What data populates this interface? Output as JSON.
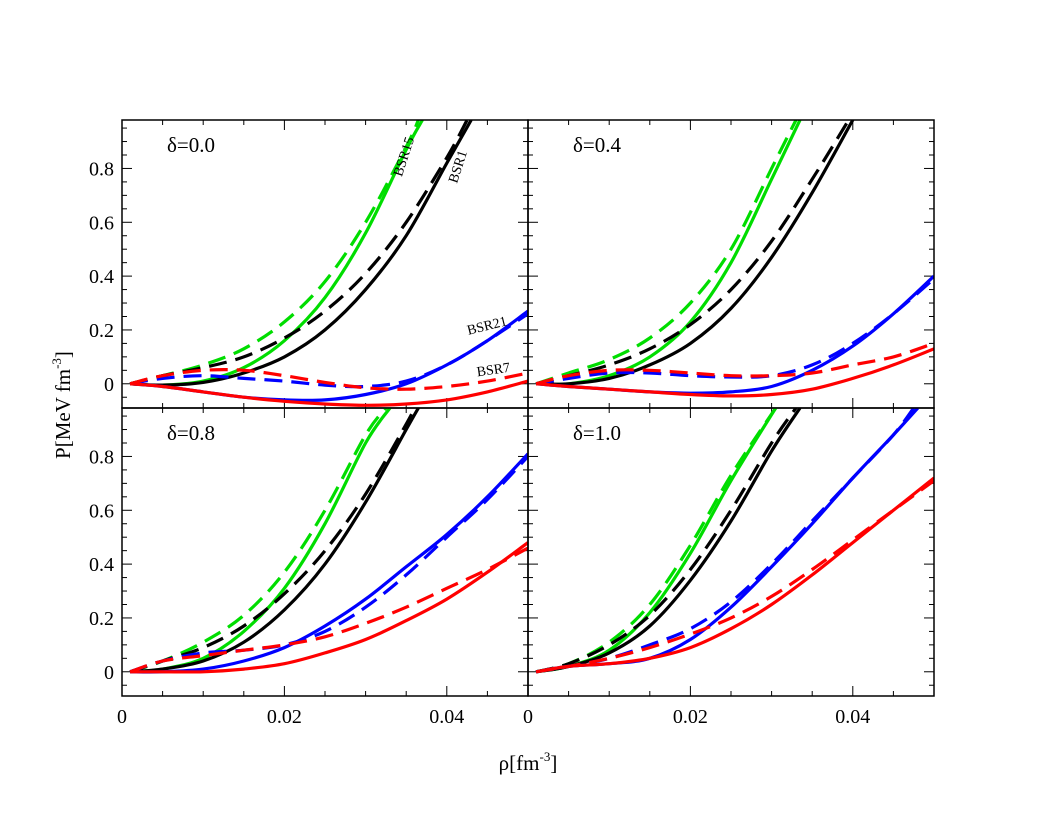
{
  "figure": {
    "ylabel": {
      "main": "P[MeV fm",
      "sup": "-3",
      "close": "]"
    },
    "xlabel": {
      "main": "ρ[fm",
      "sup": "-3",
      "close": "]"
    }
  },
  "chart_data": {
    "type": "line",
    "layout": "2x2 panels sharing x and y axes",
    "xlim": [
      0,
      0.05
    ],
    "ylim": [
      -0.09,
      0.98
    ],
    "x_ticks": [
      0,
      0.02,
      0.04
    ],
    "x_tick_labels": [
      "0",
      "0.02",
      "0.04"
    ],
    "y_ticks": [
      0,
      0.2,
      0.4,
      0.6,
      0.8
    ],
    "y_tick_labels": [
      "0",
      "0.2",
      "0.4",
      "0.6",
      "0.8"
    ],
    "xlabel": "ρ[fm^-3]",
    "ylabel": "P[MeV fm^-3]",
    "line_styles": {
      "solid": "solid",
      "dashed": "dashed"
    },
    "models": [
      {
        "name": "BSR1",
        "color": "#000000"
      },
      {
        "name": "BSR7",
        "color": "#ff0000"
      },
      {
        "name": "BSR15",
        "color": "#00dd00"
      },
      {
        "name": "BSR21",
        "color": "#0000ff"
      }
    ],
    "panels": [
      {
        "label": "δ=0.0",
        "curve_labels": [
          "BSR15",
          "BSR1",
          "BSR21",
          "BSR7"
        ],
        "series": [
          {
            "model": "BSR15",
            "style": "solid",
            "x": [
              0.001,
              0.005,
              0.01,
              0.015,
              0.02,
              0.025,
              0.03,
              0.035,
              0.037
            ],
            "y": [
              0,
              -0.005,
              0.01,
              0.06,
              0.16,
              0.32,
              0.56,
              0.87,
              0.98
            ]
          },
          {
            "model": "BSR15",
            "style": "dashed",
            "x": [
              0.001,
              0.005,
              0.01,
              0.015,
              0.02,
              0.025,
              0.03,
              0.035,
              0.0365
            ],
            "y": [
              0,
              0.03,
              0.07,
              0.13,
              0.23,
              0.38,
              0.6,
              0.88,
              0.98
            ]
          },
          {
            "model": "BSR1",
            "style": "solid",
            "x": [
              0.001,
              0.005,
              0.01,
              0.015,
              0.02,
              0.025,
              0.03,
              0.035,
              0.04,
              0.043
            ],
            "y": [
              0,
              -0.005,
              0.005,
              0.04,
              0.1,
              0.2,
              0.35,
              0.55,
              0.82,
              0.98
            ]
          },
          {
            "model": "BSR1",
            "style": "dashed",
            "x": [
              0.001,
              0.005,
              0.01,
              0.015,
              0.02,
              0.025,
              0.03,
              0.035,
              0.04,
              0.0425
            ],
            "y": [
              0,
              0.03,
              0.06,
              0.1,
              0.17,
              0.27,
              0.41,
              0.6,
              0.84,
              0.98
            ]
          },
          {
            "model": "BSR21",
            "style": "solid",
            "x": [
              0.001,
              0.005,
              0.01,
              0.015,
              0.02,
              0.025,
              0.03,
              0.035,
              0.04,
              0.045,
              0.05
            ],
            "y": [
              0,
              -0.01,
              -0.03,
              -0.05,
              -0.06,
              -0.06,
              -0.04,
              0,
              0.07,
              0.16,
              0.27
            ]
          },
          {
            "model": "BSR21",
            "style": "dashed",
            "x": [
              0.001,
              0.005,
              0.01,
              0.015,
              0.02,
              0.025,
              0.03,
              0.035,
              0.04,
              0.045,
              0.05
            ],
            "y": [
              0,
              0.02,
              0.03,
              0.02,
              0.01,
              -0.005,
              -0.01,
              0.01,
              0.07,
              0.16,
              0.26
            ]
          },
          {
            "model": "BSR7",
            "style": "solid",
            "x": [
              0.001,
              0.005,
              0.01,
              0.015,
              0.02,
              0.025,
              0.03,
              0.035,
              0.04,
              0.045,
              0.05
            ],
            "y": [
              0,
              -0.01,
              -0.03,
              -0.05,
              -0.065,
              -0.075,
              -0.08,
              -0.075,
              -0.06,
              -0.03,
              0.01
            ]
          },
          {
            "model": "BSR7",
            "style": "dashed",
            "x": [
              0.001,
              0.005,
              0.01,
              0.015,
              0.02,
              0.025,
              0.03,
              0.035,
              0.04,
              0.045,
              0.05
            ],
            "y": [
              0,
              0.03,
              0.05,
              0.05,
              0.03,
              0.005,
              -0.015,
              -0.02,
              -0.01,
              0.01,
              0.04
            ]
          }
        ]
      },
      {
        "label": "δ=0.4",
        "curve_labels": [],
        "series": [
          {
            "model": "BSR15",
            "style": "solid",
            "x": [
              0.001,
              0.005,
              0.01,
              0.015,
              0.02,
              0.025,
              0.03,
              0.0335
            ],
            "y": [
              0,
              0,
              0.03,
              0.1,
              0.23,
              0.45,
              0.76,
              0.98
            ]
          },
          {
            "model": "BSR15",
            "style": "dashed",
            "x": [
              0.001,
              0.005,
              0.01,
              0.015,
              0.02,
              0.025,
              0.03,
              0.033
            ],
            "y": [
              0,
              0.04,
              0.09,
              0.17,
              0.3,
              0.5,
              0.8,
              0.98
            ]
          },
          {
            "model": "BSR1",
            "style": "solid",
            "x": [
              0.001,
              0.005,
              0.01,
              0.015,
              0.02,
              0.025,
              0.03,
              0.035,
              0.04
            ],
            "y": [
              0,
              0,
              0.02,
              0.07,
              0.15,
              0.28,
              0.47,
              0.71,
              0.98
            ]
          },
          {
            "model": "BSR1",
            "style": "dashed",
            "x": [
              0.001,
              0.005,
              0.01,
              0.015,
              0.02,
              0.025,
              0.03,
              0.035,
              0.0395
            ],
            "y": [
              0,
              0.03,
              0.07,
              0.13,
              0.22,
              0.35,
              0.53,
              0.76,
              0.98
            ]
          },
          {
            "model": "BSR21",
            "style": "solid",
            "x": [
              0.001,
              0.005,
              0.01,
              0.015,
              0.02,
              0.025,
              0.03,
              0.035,
              0.04,
              0.045,
              0.05
            ],
            "y": [
              0,
              -0.01,
              -0.02,
              -0.03,
              -0.035,
              -0.03,
              -0.01,
              0.05,
              0.14,
              0.26,
              0.4
            ]
          },
          {
            "model": "BSR21",
            "style": "dashed",
            "x": [
              0.001,
              0.005,
              0.01,
              0.015,
              0.02,
              0.025,
              0.03,
              0.035,
              0.04,
              0.045,
              0.05
            ],
            "y": [
              0,
              0.02,
              0.04,
              0.04,
              0.03,
              0.025,
              0.03,
              0.07,
              0.15,
              0.26,
              0.39
            ]
          },
          {
            "model": "BSR7",
            "style": "solid",
            "x": [
              0.001,
              0.005,
              0.01,
              0.015,
              0.02,
              0.025,
              0.03,
              0.035,
              0.04,
              0.045,
              0.05
            ],
            "y": [
              0,
              -0.01,
              -0.02,
              -0.03,
              -0.04,
              -0.045,
              -0.04,
              -0.02,
              0.02,
              0.07,
              0.13
            ]
          },
          {
            "model": "BSR7",
            "style": "dashed",
            "x": [
              0.001,
              0.005,
              0.01,
              0.015,
              0.02,
              0.025,
              0.03,
              0.035,
              0.04,
              0.045,
              0.05
            ],
            "y": [
              0,
              0.03,
              0.05,
              0.05,
              0.04,
              0.03,
              0.03,
              0.04,
              0.07,
              0.1,
              0.15
            ]
          }
        ]
      },
      {
        "label": "δ=0.8",
        "curve_labels": [],
        "series": [
          {
            "model": "BSR15",
            "style": "solid",
            "x": [
              0.001,
              0.005,
              0.01,
              0.015,
              0.02,
              0.025,
              0.03,
              0.033
            ],
            "y": [
              0,
              0.01,
              0.05,
              0.15,
              0.31,
              0.55,
              0.85,
              0.98
            ]
          },
          {
            "model": "BSR15",
            "style": "dashed",
            "x": [
              0.001,
              0.005,
              0.01,
              0.015,
              0.02,
              0.025,
              0.03,
              0.0325
            ],
            "y": [
              0,
              0.04,
              0.11,
              0.21,
              0.37,
              0.6,
              0.88,
              0.98
            ]
          },
          {
            "model": "BSR1",
            "style": "solid",
            "x": [
              0.001,
              0.005,
              0.01,
              0.015,
              0.02,
              0.025,
              0.03,
              0.035,
              0.0365
            ],
            "y": [
              0,
              0.01,
              0.04,
              0.11,
              0.23,
              0.4,
              0.63,
              0.9,
              0.98
            ]
          },
          {
            "model": "BSR1",
            "style": "dashed",
            "x": [
              0.001,
              0.005,
              0.01,
              0.015,
              0.02,
              0.025,
              0.03,
              0.035,
              0.036
            ],
            "y": [
              0,
              0.04,
              0.09,
              0.17,
              0.29,
              0.45,
              0.66,
              0.92,
              0.98
            ]
          },
          {
            "model": "BSR21",
            "style": "solid",
            "x": [
              0.001,
              0.005,
              0.01,
              0.015,
              0.02,
              0.025,
              0.03,
              0.035,
              0.04,
              0.045,
              0.05
            ],
            "y": [
              0,
              0,
              0.01,
              0.04,
              0.09,
              0.17,
              0.27,
              0.39,
              0.51,
              0.65,
              0.81
            ]
          },
          {
            "model": "BSR21",
            "style": "dashed",
            "x": [
              0.001,
              0.005,
              0.01,
              0.015,
              0.02,
              0.025,
              0.03,
              0.035,
              0.04,
              0.045,
              0.05
            ],
            "y": [
              0,
              0.04,
              0.07,
              0.08,
              0.1,
              0.15,
              0.24,
              0.36,
              0.5,
              0.64,
              0.8
            ]
          },
          {
            "model": "BSR7",
            "style": "solid",
            "x": [
              0.001,
              0.005,
              0.01,
              0.015,
              0.02,
              0.025,
              0.03,
              0.035,
              0.04,
              0.045,
              0.05
            ],
            "y": [
              0,
              0,
              0,
              0.01,
              0.03,
              0.07,
              0.12,
              0.19,
              0.27,
              0.37,
              0.48
            ]
          },
          {
            "model": "BSR7",
            "style": "dashed",
            "x": [
              0.001,
              0.005,
              0.01,
              0.015,
              0.02,
              0.025,
              0.03,
              0.035,
              0.04,
              0.045,
              0.05
            ],
            "y": [
              0,
              0.04,
              0.06,
              0.08,
              0.1,
              0.13,
              0.18,
              0.24,
              0.31,
              0.38,
              0.46
            ]
          }
        ]
      },
      {
        "label": "δ=1.0",
        "curve_labels": [],
        "series": [
          {
            "model": "BSR15",
            "style": "solid",
            "x": [
              0.001,
              0.005,
              0.01,
              0.015,
              0.02,
              0.025,
              0.0305
            ],
            "y": [
              0,
              0.02,
              0.08,
              0.22,
              0.44,
              0.71,
              0.98
            ]
          },
          {
            "model": "BSR15",
            "style": "dashed",
            "x": [
              0.001,
              0.005,
              0.01,
              0.015,
              0.02,
              0.025,
              0.0305
            ],
            "y": [
              0,
              0.03,
              0.11,
              0.25,
              0.47,
              0.73,
              0.98
            ]
          },
          {
            "model": "BSR1",
            "style": "solid",
            "x": [
              0.001,
              0.005,
              0.01,
              0.015,
              0.02,
              0.025,
              0.03,
              0.0335
            ],
            "y": [
              0,
              0.02,
              0.07,
              0.17,
              0.34,
              0.56,
              0.82,
              0.98
            ]
          },
          {
            "model": "BSR1",
            "style": "dashed",
            "x": [
              0.001,
              0.005,
              0.01,
              0.015,
              0.02,
              0.025,
              0.03,
              0.033
            ],
            "y": [
              0,
              0.03,
              0.1,
              0.21,
              0.38,
              0.6,
              0.85,
              0.98
            ]
          },
          {
            "model": "BSR21",
            "style": "solid",
            "x": [
              0.001,
              0.005,
              0.01,
              0.015,
              0.02,
              0.025,
              0.03,
              0.035,
              0.04,
              0.045,
              0.048
            ],
            "y": [
              0,
              0.02,
              0.03,
              0.05,
              0.12,
              0.24,
              0.39,
              0.55,
              0.72,
              0.88,
              0.98
            ]
          },
          {
            "model": "BSR21",
            "style": "dashed",
            "x": [
              0.001,
              0.005,
              0.01,
              0.015,
              0.02,
              0.025,
              0.03,
              0.035,
              0.04,
              0.045,
              0.0475
            ],
            "y": [
              0,
              0.02,
              0.05,
              0.1,
              0.16,
              0.26,
              0.4,
              0.56,
              0.72,
              0.88,
              0.98
            ]
          },
          {
            "model": "BSR7",
            "style": "solid",
            "x": [
              0.001,
              0.005,
              0.01,
              0.015,
              0.02,
              0.025,
              0.03,
              0.035,
              0.04,
              0.045,
              0.05
            ],
            "y": [
              0,
              0.02,
              0.03,
              0.05,
              0.09,
              0.16,
              0.25,
              0.36,
              0.48,
              0.6,
              0.72
            ]
          },
          {
            "model": "BSR7",
            "style": "dashed",
            "x": [
              0.001,
              0.005,
              0.01,
              0.015,
              0.02,
              0.025,
              0.03,
              0.035,
              0.04,
              0.045,
              0.05
            ],
            "y": [
              0,
              0.02,
              0.05,
              0.09,
              0.14,
              0.2,
              0.28,
              0.38,
              0.49,
              0.6,
              0.71
            ]
          }
        ]
      }
    ]
  }
}
